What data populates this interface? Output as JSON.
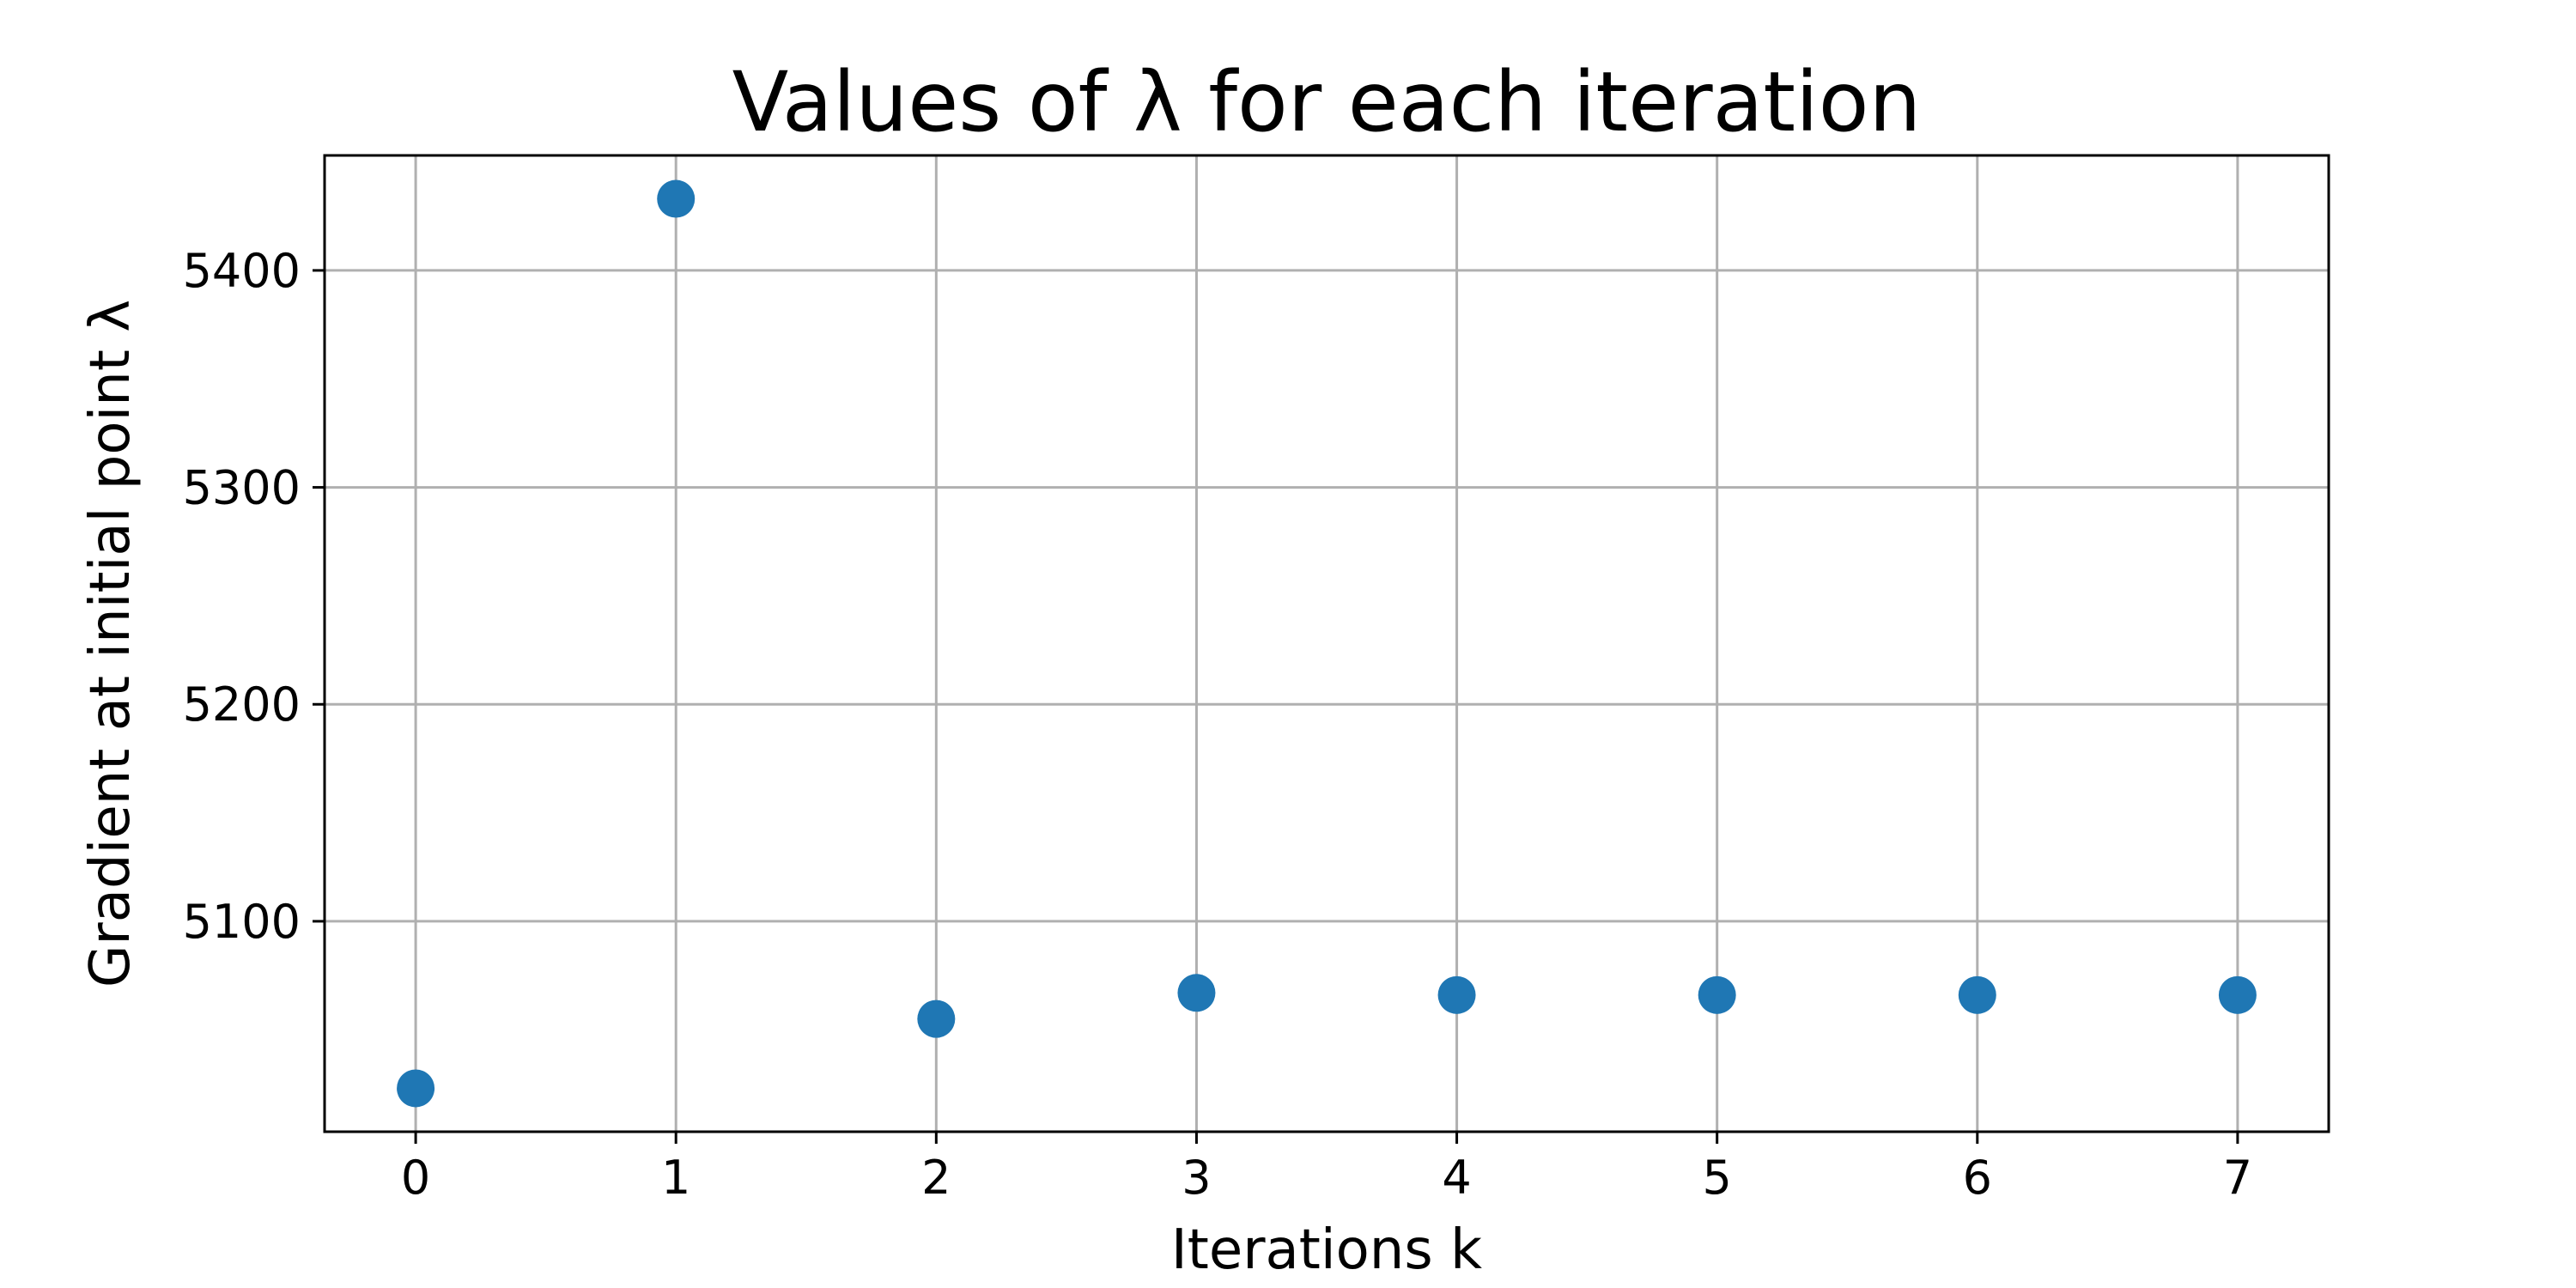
{
  "chart_data": {
    "type": "scatter",
    "title": "Values of λ for each iteration",
    "xlabel": "Iterations k",
    "ylabel": "Gradient at initial point λ",
    "x": [
      0,
      1,
      2,
      3,
      4,
      5,
      6,
      7
    ],
    "y": [
      5023,
      5433,
      5055,
      5067,
      5066,
      5066,
      5066,
      5066
    ],
    "xlim": [
      -0.35,
      7.35
    ],
    "ylim": [
      5003,
      5453
    ],
    "xticks": [
      0,
      1,
      2,
      3,
      4,
      5,
      6,
      7
    ],
    "yticks": [
      5100,
      5200,
      5300,
      5400
    ],
    "grid": true,
    "marker_color": "#1f77b4"
  }
}
